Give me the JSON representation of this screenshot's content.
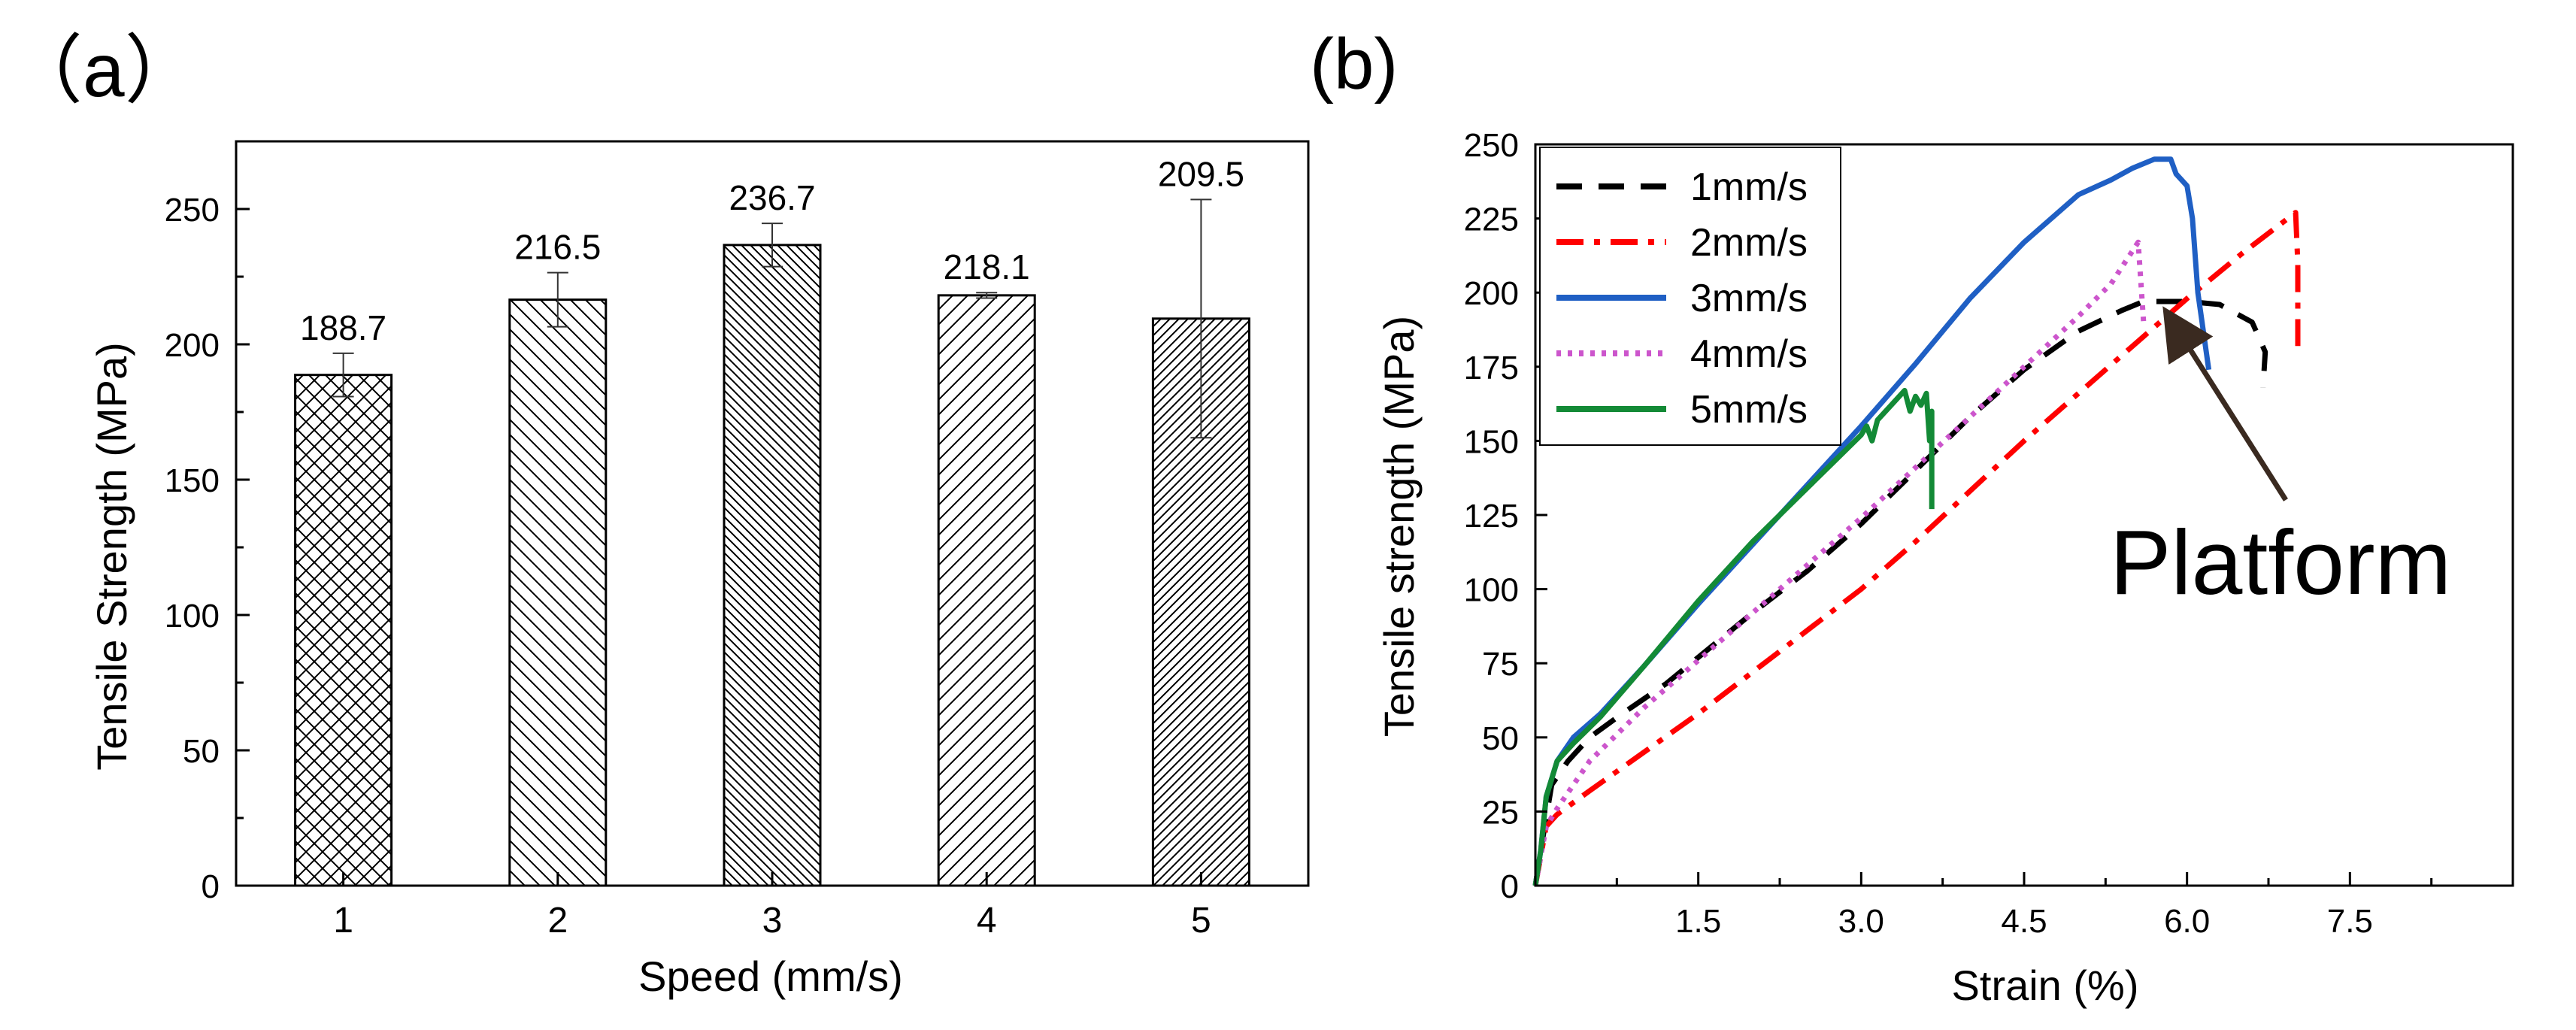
{
  "chart_data": [
    {
      "panel_label": "（a）",
      "type": "bar",
      "xlabel": "Speed (mm/s)",
      "ylabel": "Tensile Strength (MPa)",
      "categories": [
        "1",
        "2",
        "3",
        "4",
        "5"
      ],
      "values": [
        188.7,
        216.5,
        236.7,
        218.1,
        209.5
      ],
      "value_labels": [
        "188.7",
        "216.5",
        "236.7",
        "218.1",
        "209.5"
      ],
      "error": [
        8,
        10,
        8,
        1,
        44
      ],
      "hatch": [
        "cross",
        "diag-left",
        "diag-left-dense",
        "diag-right",
        "diag-right-dense"
      ],
      "ylim": [
        0,
        275
      ],
      "yticks": [
        0,
        50,
        100,
        150,
        200,
        250
      ],
      "grid": false
    },
    {
      "panel_label": "(b)",
      "type": "line",
      "xlabel": "Strain (%)",
      "ylabel": "Tensile strength (MPa)",
      "xlim": [
        0,
        9
      ],
      "ylim": [
        0,
        250
      ],
      "xticks": [
        1.5,
        3.0,
        4.5,
        6.0,
        7.5
      ],
      "xtick_labels": [
        "1.5",
        "3.0",
        "4.5",
        "6.0",
        "7.5"
      ],
      "yticks": [
        0,
        25,
        50,
        75,
        100,
        125,
        150,
        175,
        200,
        225,
        250
      ],
      "legend_position": "top-left",
      "grid": false,
      "annotation": {
        "text": "Platform",
        "x": 5.8,
        "y": 197
      },
      "series": [
        {
          "name": "1mm/s",
          "color": "#000000",
          "dash": "dashed",
          "x": [
            0.0,
            0.05,
            0.15,
            0.3,
            0.5,
            0.8,
            1.2,
            1.6,
            2.0,
            2.5,
            3.0,
            3.5,
            4.0,
            4.5,
            5.0,
            5.4,
            5.6,
            5.7,
            6.0,
            6.3,
            6.6,
            6.72,
            6.7
          ],
          "y": [
            0,
            12,
            34,
            42,
            50,
            58,
            68,
            80,
            92,
            106,
            122,
            140,
            158,
            174,
            187,
            194,
            197,
            197,
            197,
            196,
            190,
            180,
            168
          ]
        },
        {
          "name": "2mm/s",
          "color": "#ff0000",
          "dash": "dashdot",
          "x": [
            0.0,
            0.05,
            0.1,
            0.2,
            0.5,
            1.0,
            1.5,
            2.0,
            2.5,
            3.0,
            3.5,
            4.0,
            4.5,
            5.0,
            5.5,
            6.0,
            6.5,
            7.0,
            7.02,
            7.02
          ],
          "y": [
            0,
            10,
            20,
            24,
            32,
            45,
            58,
            72,
            86,
            100,
            116,
            133,
            150,
            166,
            182,
            198,
            213,
            227,
            210,
            182
          ]
        },
        {
          "name": "3mm/s",
          "color": "#1f5fc4",
          "dash": "solid",
          "x": [
            0.0,
            0.05,
            0.1,
            0.2,
            0.35,
            0.6,
            1.0,
            1.5,
            2.0,
            2.5,
            3.0,
            3.5,
            4.0,
            4.5,
            5.0,
            5.3,
            5.5,
            5.7,
            5.85,
            5.9,
            6.0,
            6.05,
            6.1,
            6.2
          ],
          "y": [
            0,
            12,
            30,
            42,
            50,
            58,
            74,
            95,
            115,
            135,
            155,
            176,
            198,
            217,
            233,
            238,
            242,
            245,
            245,
            240,
            236,
            225,
            200,
            174
          ]
        },
        {
          "name": "4mm/s",
          "color": "#cc55cc",
          "dash": "dotted",
          "x": [
            0.0,
            0.05,
            0.1,
            0.2,
            0.5,
            1.0,
            1.5,
            2.0,
            2.5,
            3.0,
            3.5,
            4.0,
            4.5,
            5.0,
            5.3,
            5.55,
            5.6
          ],
          "y": [
            0,
            10,
            20,
            26,
            42,
            60,
            76,
            92,
            108,
            124,
            141,
            158,
            175,
            192,
            203,
            217,
            190
          ]
        },
        {
          "name": "5mm/s",
          "color": "#138a36",
          "dash": "solid",
          "x": [
            0.0,
            0.05,
            0.1,
            0.2,
            0.35,
            0.6,
            1.0,
            1.5,
            2.0,
            2.5,
            3.0,
            3.05,
            3.1,
            3.15,
            3.3,
            3.4,
            3.45,
            3.5,
            3.55,
            3.6,
            3.63,
            3.65,
            3.65
          ],
          "y": [
            0,
            12,
            30,
            42,
            48,
            57,
            74,
            96,
            116,
            134,
            152,
            155,
            150,
            157,
            163,
            167,
            160,
            165,
            162,
            166,
            150,
            160,
            127
          ]
        }
      ]
    }
  ]
}
